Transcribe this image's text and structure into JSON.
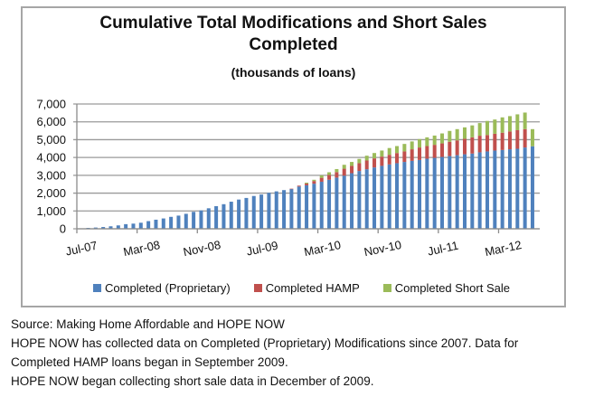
{
  "chart_data": {
    "type": "bar",
    "stacked": true,
    "title": "Cumulative Total Modifications and Short Sales Completed",
    "title_lines": [
      "Cumulative Total Modifications and Short Sales",
      "Completed"
    ],
    "subtitle": "(thousands of loans)",
    "xlabel": "",
    "ylabel": "",
    "ylim": [
      0,
      7000
    ],
    "yticks": [
      0,
      1000,
      2000,
      3000,
      4000,
      5000,
      6000,
      7000
    ],
    "ytick_labels": [
      "0",
      "1,000",
      "2,000",
      "3,000",
      "4,000",
      "5,000",
      "6,000",
      "7,000"
    ],
    "xtick_labels": [
      "Jul-07",
      "Mar-08",
      "Nov-08",
      "Jul-09",
      "Mar-10",
      "Nov-10",
      "Jul-11",
      "Mar-12"
    ],
    "xtick_every": 8,
    "grid": true,
    "legend_position": "bottom",
    "categories": [
      "Jul-07",
      "Aug-07",
      "Sep-07",
      "Oct-07",
      "Nov-07",
      "Dec-07",
      "Jan-08",
      "Feb-08",
      "Mar-08",
      "Apr-08",
      "May-08",
      "Jun-08",
      "Jul-08",
      "Aug-08",
      "Sep-08",
      "Oct-08",
      "Nov-08",
      "Dec-08",
      "Jan-09",
      "Feb-09",
      "Mar-09",
      "Apr-09",
      "May-09",
      "Jun-09",
      "Jul-09",
      "Aug-09",
      "Sep-09",
      "Oct-09",
      "Nov-09",
      "Dec-09",
      "Jan-10",
      "Feb-10",
      "Mar-10",
      "Apr-10",
      "May-10",
      "Jun-10",
      "Jul-10",
      "Aug-10",
      "Sep-10",
      "Oct-10",
      "Nov-10",
      "Dec-10",
      "Jan-11",
      "Feb-11",
      "Mar-11",
      "Apr-11",
      "May-11",
      "Jun-11",
      "Jul-11",
      "Aug-11",
      "Sep-11",
      "Oct-11",
      "Nov-11",
      "Dec-11",
      "Jan-12",
      "Feb-12",
      "Mar-12",
      "Apr-12",
      "May-12",
      "Jun-12",
      "Jul-12"
    ],
    "series": [
      {
        "name": "Completed (Proprietary)",
        "color": "#4f81bd",
        "values": [
          20,
          50,
          70,
          100,
          140,
          190,
          260,
          290,
          340,
          430,
          510,
          580,
          670,
          740,
          840,
          950,
          1030,
          1150,
          1270,
          1380,
          1520,
          1640,
          1730,
          1840,
          1920,
          2020,
          2100,
          2170,
          2230,
          2370,
          2440,
          2530,
          2640,
          2750,
          2870,
          2980,
          3120,
          3240,
          3340,
          3440,
          3530,
          3610,
          3680,
          3750,
          3810,
          3860,
          3930,
          3980,
          4030,
          4080,
          4130,
          4180,
          4220,
          4290,
          4340,
          4390,
          4420,
          4460,
          4490,
          4560,
          4630
        ]
      },
      {
        "name": "Completed HAMP",
        "color": "#c0504d",
        "values": [
          0,
          0,
          0,
          0,
          0,
          0,
          0,
          0,
          0,
          0,
          0,
          0,
          0,
          0,
          0,
          0,
          0,
          0,
          0,
          0,
          0,
          0,
          0,
          0,
          0,
          0,
          0,
          0,
          20,
          50,
          100,
          150,
          220,
          270,
          310,
          390,
          410,
          440,
          490,
          510,
          520,
          540,
          570,
          590,
          650,
          700,
          710,
          730,
          760,
          800,
          830,
          870,
          910,
          930,
          920,
          940,
          970,
          1000,
          1040,
          1030,
          0
        ]
      },
      {
        "name": "Completed Short Sale",
        "color": "#9bbb59",
        "values": [
          0,
          0,
          0,
          0,
          0,
          0,
          0,
          0,
          0,
          0,
          0,
          0,
          0,
          0,
          0,
          0,
          0,
          0,
          0,
          0,
          0,
          0,
          0,
          0,
          0,
          0,
          0,
          0,
          0,
          0,
          50,
          70,
          140,
          150,
          170,
          220,
          220,
          240,
          270,
          300,
          340,
          380,
          390,
          420,
          440,
          470,
          490,
          520,
          560,
          610,
          630,
          640,
          670,
          710,
          790,
          800,
          860,
          860,
          890,
          930,
          960
        ]
      }
    ]
  },
  "notes": {
    "source": "Source: Making Home Affordable and HOPE NOW",
    "line2": "HOPE NOW has collected data on Completed (Proprietary) Modifications since 2007. Data for",
    "line3": "Completed HAMP loans began in September 2009.",
    "line4": "HOPE NOW began collecting short sale data in December of 2009."
  }
}
